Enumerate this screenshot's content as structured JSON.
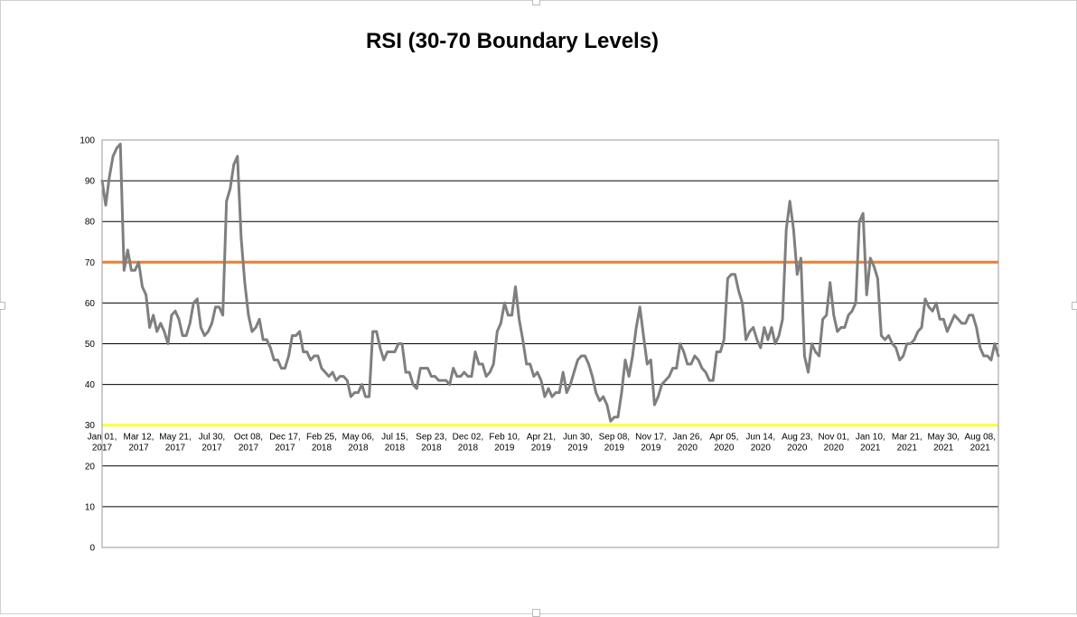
{
  "colors": {
    "series_line": "#7f7f7f",
    "upper_boundary": "#ed7d31",
    "lower_boundary": "#ffff33",
    "gridline": "#000000",
    "background": "#ffffff"
  },
  "chart_data": {
    "type": "line",
    "title": "RSI (30-70 Boundary Levels)",
    "xlabel": "",
    "ylabel": "",
    "ylim": [
      0,
      100
    ],
    "yticks": [
      0,
      10,
      20,
      30,
      40,
      50,
      60,
      70,
      80,
      90,
      100
    ],
    "grid": true,
    "legend": "none",
    "x_tick_labels": [
      {
        "date": "2017-01-01",
        "line1": "Jan 01,",
        "line2": "2017"
      },
      {
        "date": "2017-03-12",
        "line1": "Mar 12,",
        "line2": "2017"
      },
      {
        "date": "2017-05-21",
        "line1": "May 21,",
        "line2": "2017"
      },
      {
        "date": "2017-07-30",
        "line1": "Jul 30,",
        "line2": "2017"
      },
      {
        "date": "2017-10-08",
        "line1": "Oct 08,",
        "line2": "2017"
      },
      {
        "date": "2017-12-17",
        "line1": "Dec 17,",
        "line2": "2017"
      },
      {
        "date": "2018-02-25",
        "line1": "Feb 25,",
        "line2": "2018"
      },
      {
        "date": "2018-05-06",
        "line1": "May 06,",
        "line2": "2018"
      },
      {
        "date": "2018-07-15",
        "line1": "Jul 15,",
        "line2": "2018"
      },
      {
        "date": "2018-09-23",
        "line1": "Sep 23,",
        "line2": "2018"
      },
      {
        "date": "2018-12-02",
        "line1": "Dec 02,",
        "line2": "2018"
      },
      {
        "date": "2019-02-10",
        "line1": "Feb 10,",
        "line2": "2019"
      },
      {
        "date": "2019-04-21",
        "line1": "Apr 21,",
        "line2": "2019"
      },
      {
        "date": "2019-06-30",
        "line1": "Jun 30,",
        "line2": "2019"
      },
      {
        "date": "2019-09-08",
        "line1": "Sep 08,",
        "line2": "2019"
      },
      {
        "date": "2019-11-17",
        "line1": "Nov 17,",
        "line2": "2019"
      },
      {
        "date": "2020-01-26",
        "line1": "Jan 26,",
        "line2": "2020"
      },
      {
        "date": "2020-04-05",
        "line1": "Apr 05,",
        "line2": "2020"
      },
      {
        "date": "2020-06-14",
        "line1": "Jun 14,",
        "line2": "2020"
      },
      {
        "date": "2020-08-23",
        "line1": "Aug 23,",
        "line2": "2020"
      },
      {
        "date": "2020-11-01",
        "line1": "Nov 01,",
        "line2": "2020"
      },
      {
        "date": "2021-01-10",
        "line1": "Jan 10,",
        "line2": "2021"
      },
      {
        "date": "2021-03-21",
        "line1": "Mar 21,",
        "line2": "2021"
      },
      {
        "date": "2021-05-30",
        "line1": "May 30,",
        "line2": "2021"
      },
      {
        "date": "2021-08-08",
        "line1": "Aug 08,",
        "line2": "2021"
      }
    ],
    "boundaries": [
      {
        "value": 70
      },
      {
        "value": 30
      }
    ],
    "series": [
      {
        "points": [
          [
            "2017-01-01",
            90
          ],
          [
            "2017-01-08",
            84
          ],
          [
            "2017-01-15",
            91
          ],
          [
            "2017-01-22",
            96
          ],
          [
            "2017-01-29",
            98
          ],
          [
            "2017-02-05",
            99
          ],
          [
            "2017-02-12",
            68
          ],
          [
            "2017-02-19",
            73
          ],
          [
            "2017-02-26",
            68
          ],
          [
            "2017-03-05",
            68
          ],
          [
            "2017-03-12",
            70
          ],
          [
            "2017-03-19",
            64
          ],
          [
            "2017-03-26",
            62
          ],
          [
            "2017-04-02",
            54
          ],
          [
            "2017-04-09",
            57
          ],
          [
            "2017-04-16",
            53
          ],
          [
            "2017-04-23",
            55
          ],
          [
            "2017-04-30",
            53
          ],
          [
            "2017-05-07",
            50
          ],
          [
            "2017-05-14",
            57
          ],
          [
            "2017-05-21",
            58
          ],
          [
            "2017-05-28",
            56
          ],
          [
            "2017-06-04",
            52
          ],
          [
            "2017-06-11",
            52
          ],
          [
            "2017-06-18",
            55
          ],
          [
            "2017-06-25",
            60
          ],
          [
            "2017-07-02",
            61
          ],
          [
            "2017-07-09",
            54
          ],
          [
            "2017-07-16",
            52
          ],
          [
            "2017-07-23",
            53
          ],
          [
            "2017-07-30",
            55
          ],
          [
            "2017-08-06",
            59
          ],
          [
            "2017-08-13",
            59
          ],
          [
            "2017-08-20",
            57
          ],
          [
            "2017-08-27",
            85
          ],
          [
            "2017-09-03",
            88
          ],
          [
            "2017-09-10",
            94
          ],
          [
            "2017-09-17",
            96
          ],
          [
            "2017-09-24",
            76
          ],
          [
            "2017-10-01",
            65
          ],
          [
            "2017-10-08",
            57
          ],
          [
            "2017-10-15",
            53
          ],
          [
            "2017-10-22",
            54
          ],
          [
            "2017-10-29",
            56
          ],
          [
            "2017-11-05",
            51
          ],
          [
            "2017-11-12",
            51
          ],
          [
            "2017-11-19",
            49
          ],
          [
            "2017-11-26",
            46
          ],
          [
            "2017-12-03",
            46
          ],
          [
            "2017-12-10",
            44
          ],
          [
            "2017-12-17",
            44
          ],
          [
            "2017-12-24",
            47
          ],
          [
            "2017-12-31",
            52
          ],
          [
            "2018-01-07",
            52
          ],
          [
            "2018-01-14",
            53
          ],
          [
            "2018-01-21",
            48
          ],
          [
            "2018-01-28",
            48
          ],
          [
            "2018-02-04",
            46
          ],
          [
            "2018-02-11",
            47
          ],
          [
            "2018-02-18",
            47
          ],
          [
            "2018-02-25",
            44
          ],
          [
            "2018-03-04",
            43
          ],
          [
            "2018-03-11",
            42
          ],
          [
            "2018-03-18",
            43
          ],
          [
            "2018-03-25",
            41
          ],
          [
            "2018-04-01",
            42
          ],
          [
            "2018-04-08",
            42
          ],
          [
            "2018-04-15",
            41
          ],
          [
            "2018-04-22",
            37
          ],
          [
            "2018-04-29",
            38
          ],
          [
            "2018-05-06",
            38
          ],
          [
            "2018-05-13",
            40
          ],
          [
            "2018-05-20",
            37
          ],
          [
            "2018-05-27",
            37
          ],
          [
            "2018-06-03",
            53
          ],
          [
            "2018-06-10",
            53
          ],
          [
            "2018-06-17",
            49
          ],
          [
            "2018-06-24",
            46
          ],
          [
            "2018-07-01",
            48
          ],
          [
            "2018-07-08",
            48
          ],
          [
            "2018-07-15",
            48
          ],
          [
            "2018-07-22",
            50
          ],
          [
            "2018-07-29",
            50
          ],
          [
            "2018-08-05",
            43
          ],
          [
            "2018-08-12",
            43
          ],
          [
            "2018-08-19",
            40
          ],
          [
            "2018-08-26",
            39
          ],
          [
            "2018-09-02",
            44
          ],
          [
            "2018-09-09",
            44
          ],
          [
            "2018-09-16",
            44
          ],
          [
            "2018-09-23",
            42
          ],
          [
            "2018-09-30",
            42
          ],
          [
            "2018-10-07",
            41
          ],
          [
            "2018-10-14",
            41
          ],
          [
            "2018-10-21",
            41
          ],
          [
            "2018-10-28",
            40
          ],
          [
            "2018-11-04",
            44
          ],
          [
            "2018-11-11",
            42
          ],
          [
            "2018-11-18",
            42
          ],
          [
            "2018-11-25",
            43
          ],
          [
            "2018-12-02",
            42
          ],
          [
            "2018-12-09",
            42
          ],
          [
            "2018-12-16",
            48
          ],
          [
            "2018-12-23",
            45
          ],
          [
            "2018-12-30",
            45
          ],
          [
            "2019-01-06",
            42
          ],
          [
            "2019-01-13",
            43
          ],
          [
            "2019-01-20",
            45
          ],
          [
            "2019-01-27",
            53
          ],
          [
            "2019-02-03",
            55
          ],
          [
            "2019-02-10",
            60
          ],
          [
            "2019-02-17",
            57
          ],
          [
            "2019-02-24",
            57
          ],
          [
            "2019-03-03",
            64
          ],
          [
            "2019-03-10",
            56
          ],
          [
            "2019-03-17",
            51
          ],
          [
            "2019-03-24",
            45
          ],
          [
            "2019-03-31",
            45
          ],
          [
            "2019-04-07",
            42
          ],
          [
            "2019-04-14",
            43
          ],
          [
            "2019-04-21",
            41
          ],
          [
            "2019-04-28",
            37
          ],
          [
            "2019-05-05",
            39
          ],
          [
            "2019-05-12",
            37
          ],
          [
            "2019-05-19",
            38
          ],
          [
            "2019-05-26",
            38
          ],
          [
            "2019-06-02",
            43
          ],
          [
            "2019-06-09",
            38
          ],
          [
            "2019-06-16",
            40
          ],
          [
            "2019-06-23",
            43
          ],
          [
            "2019-06-30",
            46
          ],
          [
            "2019-07-07",
            47
          ],
          [
            "2019-07-14",
            47
          ],
          [
            "2019-07-21",
            45
          ],
          [
            "2019-07-28",
            42
          ],
          [
            "2019-08-04",
            38
          ],
          [
            "2019-08-11",
            36
          ],
          [
            "2019-08-18",
            37
          ],
          [
            "2019-08-25",
            35
          ],
          [
            "2019-09-01",
            31
          ],
          [
            "2019-09-08",
            32
          ],
          [
            "2019-09-15",
            32
          ],
          [
            "2019-09-22",
            38
          ],
          [
            "2019-09-29",
            46
          ],
          [
            "2019-10-06",
            42
          ],
          [
            "2019-10-13",
            47
          ],
          [
            "2019-10-20",
            54
          ],
          [
            "2019-10-27",
            59
          ],
          [
            "2019-11-03",
            52
          ],
          [
            "2019-11-10",
            45
          ],
          [
            "2019-11-17",
            46
          ],
          [
            "2019-11-24",
            35
          ],
          [
            "2019-12-01",
            37
          ],
          [
            "2019-12-08",
            40
          ],
          [
            "2019-12-15",
            41
          ],
          [
            "2019-12-22",
            42
          ],
          [
            "2019-12-29",
            44
          ],
          [
            "2020-01-05",
            44
          ],
          [
            "2020-01-12",
            50
          ],
          [
            "2020-01-19",
            48
          ],
          [
            "2020-01-26",
            45
          ],
          [
            "2020-02-02",
            45
          ],
          [
            "2020-02-09",
            47
          ],
          [
            "2020-02-16",
            46
          ],
          [
            "2020-02-23",
            44
          ],
          [
            "2020-03-01",
            43
          ],
          [
            "2020-03-08",
            41
          ],
          [
            "2020-03-15",
            41
          ],
          [
            "2020-03-22",
            48
          ],
          [
            "2020-03-29",
            48
          ],
          [
            "2020-04-05",
            51
          ],
          [
            "2020-04-12",
            66
          ],
          [
            "2020-04-19",
            67
          ],
          [
            "2020-04-26",
            67
          ],
          [
            "2020-05-03",
            63
          ],
          [
            "2020-05-10",
            60
          ],
          [
            "2020-05-17",
            51
          ],
          [
            "2020-05-24",
            53
          ],
          [
            "2020-05-31",
            54
          ],
          [
            "2020-06-07",
            51
          ],
          [
            "2020-06-14",
            49
          ],
          [
            "2020-06-21",
            54
          ],
          [
            "2020-06-28",
            51
          ],
          [
            "2020-07-05",
            54
          ],
          [
            "2020-07-12",
            50
          ],
          [
            "2020-07-19",
            52
          ],
          [
            "2020-07-26",
            56
          ],
          [
            "2020-08-02",
            78
          ],
          [
            "2020-08-09",
            85
          ],
          [
            "2020-08-16",
            78
          ],
          [
            "2020-08-23",
            67
          ],
          [
            "2020-08-30",
            71
          ],
          [
            "2020-09-06",
            47
          ],
          [
            "2020-09-13",
            43
          ],
          [
            "2020-09-20",
            50
          ],
          [
            "2020-09-27",
            48
          ],
          [
            "2020-10-04",
            47
          ],
          [
            "2020-10-11",
            56
          ],
          [
            "2020-10-18",
            57
          ],
          [
            "2020-10-25",
            65
          ],
          [
            "2020-11-01",
            57
          ],
          [
            "2020-11-08",
            53
          ],
          [
            "2020-11-15",
            54
          ],
          [
            "2020-11-22",
            54
          ],
          [
            "2020-11-29",
            57
          ],
          [
            "2020-12-06",
            58
          ],
          [
            "2020-12-13",
            60
          ],
          [
            "2020-12-20",
            80
          ],
          [
            "2020-12-27",
            82
          ],
          [
            "2021-01-03",
            62
          ],
          [
            "2021-01-10",
            71
          ],
          [
            "2021-01-17",
            69
          ],
          [
            "2021-01-24",
            66
          ],
          [
            "2021-01-31",
            52
          ],
          [
            "2021-02-07",
            51
          ],
          [
            "2021-02-14",
            52
          ],
          [
            "2021-02-21",
            50
          ],
          [
            "2021-02-28",
            49
          ],
          [
            "2021-03-07",
            46
          ],
          [
            "2021-03-14",
            47
          ],
          [
            "2021-03-21",
            50
          ],
          [
            "2021-03-28",
            50
          ],
          [
            "2021-04-04",
            51
          ],
          [
            "2021-04-11",
            53
          ],
          [
            "2021-04-18",
            54
          ],
          [
            "2021-04-25",
            61
          ],
          [
            "2021-05-02",
            59
          ],
          [
            "2021-05-09",
            58
          ],
          [
            "2021-05-16",
            60
          ],
          [
            "2021-05-23",
            56
          ],
          [
            "2021-05-30",
            56
          ],
          [
            "2021-06-06",
            53
          ],
          [
            "2021-06-13",
            55
          ],
          [
            "2021-06-20",
            57
          ],
          [
            "2021-06-27",
            56
          ],
          [
            "2021-07-04",
            55
          ],
          [
            "2021-07-11",
            55
          ],
          [
            "2021-07-18",
            57
          ],
          [
            "2021-07-25",
            57
          ],
          [
            "2021-08-01",
            54
          ],
          [
            "2021-08-08",
            49
          ],
          [
            "2021-08-15",
            47
          ],
          [
            "2021-08-22",
            47
          ],
          [
            "2021-08-29",
            46
          ],
          [
            "2021-09-05",
            50
          ],
          [
            "2021-09-12",
            47
          ]
        ]
      }
    ]
  }
}
